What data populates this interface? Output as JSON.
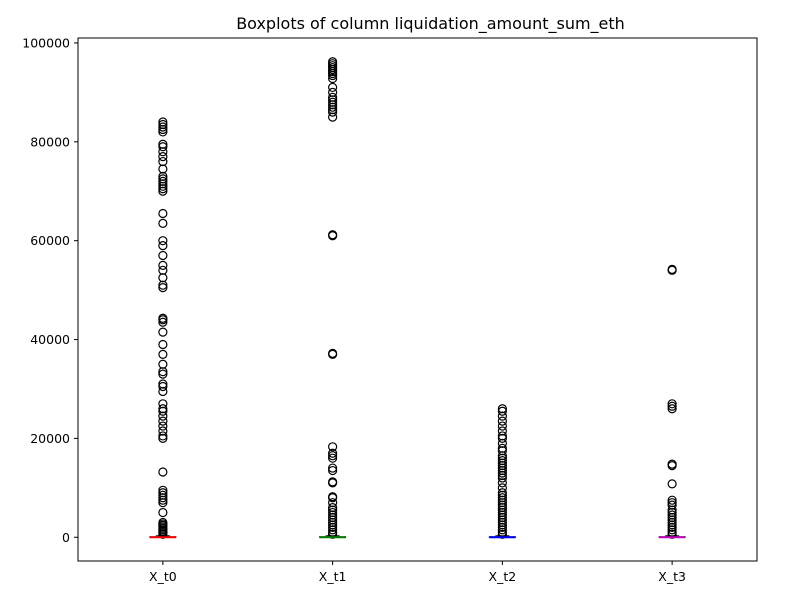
{
  "chart_data": {
    "type": "boxplot",
    "title": "Boxplots of column liquidation_amount_sum_eth",
    "xlabel": "",
    "ylabel": "",
    "ylim": [
      -4800,
      101000
    ],
    "yticks": [
      0,
      20000,
      40000,
      60000,
      80000,
      100000
    ],
    "ytick_labels": [
      "0",
      "20000",
      "40000",
      "60000",
      "80000",
      "100000"
    ],
    "grid": false,
    "categories": [
      "X_t0",
      "X_t1",
      "X_t2",
      "X_t3"
    ],
    "series": [
      {
        "category": "X_t0",
        "median_color": "#ff0000",
        "q1": 0,
        "median": 0,
        "q3": 100,
        "whisker_low": 0,
        "whisker_high": 300,
        "outliers": [
          84000,
          83500,
          83000,
          82500,
          82000,
          79500,
          79000,
          78000,
          77000,
          76000,
          74500,
          73000,
          72500,
          72000,
          71500,
          71000,
          70500,
          70000,
          65500,
          63500,
          60000,
          59000,
          57000,
          55000,
          54000,
          52500,
          51000,
          50500,
          44300,
          44000,
          43500,
          41500,
          39000,
          37000,
          35000,
          33500,
          33000,
          31000,
          30500,
          29500,
          27000,
          26000,
          25500,
          24500,
          23500,
          22500,
          21500,
          20500,
          20000,
          13200,
          9500,
          9000,
          8500,
          8000,
          7500,
          7000,
          5000,
          3000,
          2700,
          2400,
          2100,
          1800,
          1500,
          1200,
          900,
          600
        ]
      },
      {
        "category": "X_t1",
        "median_color": "#008000",
        "q1": 0,
        "median": 0,
        "q3": 100,
        "whisker_low": 0,
        "whisker_high": 300,
        "outliers": [
          96200,
          95800,
          95400,
          95000,
          94600,
          94200,
          93800,
          93400,
          92800,
          91000,
          90000,
          89000,
          88500,
          88000,
          87500,
          87000,
          86500,
          86000,
          85000,
          61200,
          61000,
          37200,
          37000,
          18300,
          17000,
          16500,
          16000,
          14000,
          13500,
          11200,
          11000,
          8200,
          8000,
          7000,
          6000,
          5500,
          5000,
          4500,
          4000,
          3500,
          3000,
          2500,
          2000,
          1500,
          1000,
          600
        ]
      },
      {
        "category": "X_t2",
        "median_color": "#0000ff",
        "q1": 0,
        "median": 0,
        "q3": 100,
        "whisker_low": 0,
        "whisker_high": 300,
        "outliers": [
          26000,
          25500,
          24500,
          23500,
          22500,
          21500,
          20500,
          20000,
          19000,
          18000,
          17500,
          16500,
          16000,
          15500,
          15000,
          14500,
          14000,
          13500,
          13000,
          12500,
          12000,
          11000,
          10000,
          9000,
          8500,
          8000,
          7500,
          7000,
          6500,
          6000,
          5500,
          5000,
          4500,
          4000,
          3500,
          3000,
          2500,
          2000,
          1500,
          1000,
          600
        ]
      },
      {
        "category": "X_t3",
        "median_color": "#bf00bf",
        "q1": 0,
        "median": 0,
        "q3": 100,
        "whisker_low": 0,
        "whisker_high": 300,
        "outliers": [
          54200,
          54000,
          27000,
          26500,
          26000,
          14800,
          14500,
          10800,
          7500,
          7000,
          6500,
          5500,
          5000,
          4500,
          4000,
          3500,
          3000,
          2500,
          2000,
          1500,
          1000,
          600
        ]
      }
    ]
  }
}
